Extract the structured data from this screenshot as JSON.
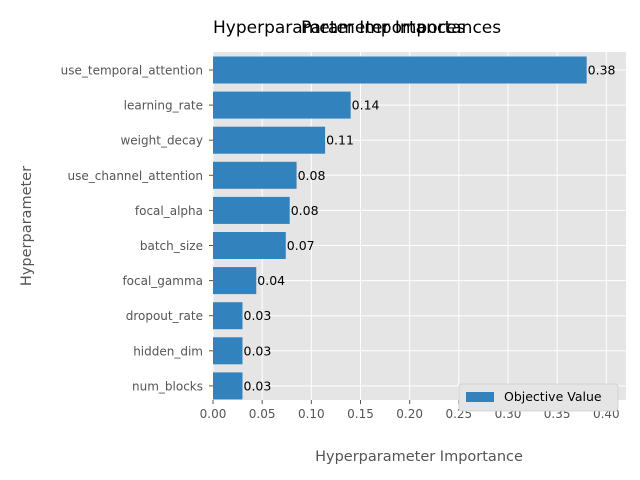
{
  "chart_data": {
    "type": "bar",
    "orientation": "horizontal",
    "titles": [
      "Hyperparameter Importances",
      "Parameter Importances"
    ],
    "xlabel": "Hyperparameter Importance",
    "ylabel": "Hyperparameter",
    "xlim": [
      0,
      0.42
    ],
    "xticks": [
      0.0,
      0.05,
      0.1,
      0.15,
      0.2,
      0.25,
      0.3,
      0.35,
      0.4
    ],
    "xtick_labels": [
      "0.00",
      "0.05",
      "0.10",
      "0.15",
      "0.20",
      "0.25",
      "0.30",
      "0.35",
      "0.40"
    ],
    "categories": [
      "use_temporal_attention",
      "learning_rate",
      "weight_decay",
      "use_channel_attention",
      "focal_alpha",
      "batch_size",
      "focal_gamma",
      "dropout_rate",
      "hidden_dim",
      "num_blocks"
    ],
    "series": [
      {
        "name": "Objective Value",
        "values": [
          0.38,
          0.14,
          0.114,
          0.085,
          0.078,
          0.074,
          0.044,
          0.03,
          0.03,
          0.03
        ],
        "labels": [
          "0.38",
          "0.14",
          "0.11",
          "0.08",
          "0.08",
          "0.07",
          "0.04",
          "0.03",
          "0.03",
          "0.03"
        ],
        "color": "#3182bd"
      }
    ],
    "grid": true,
    "legend_position": "lower-right",
    "style": {
      "background": "#e5e5e5",
      "grid_color": "#ffffff"
    }
  }
}
